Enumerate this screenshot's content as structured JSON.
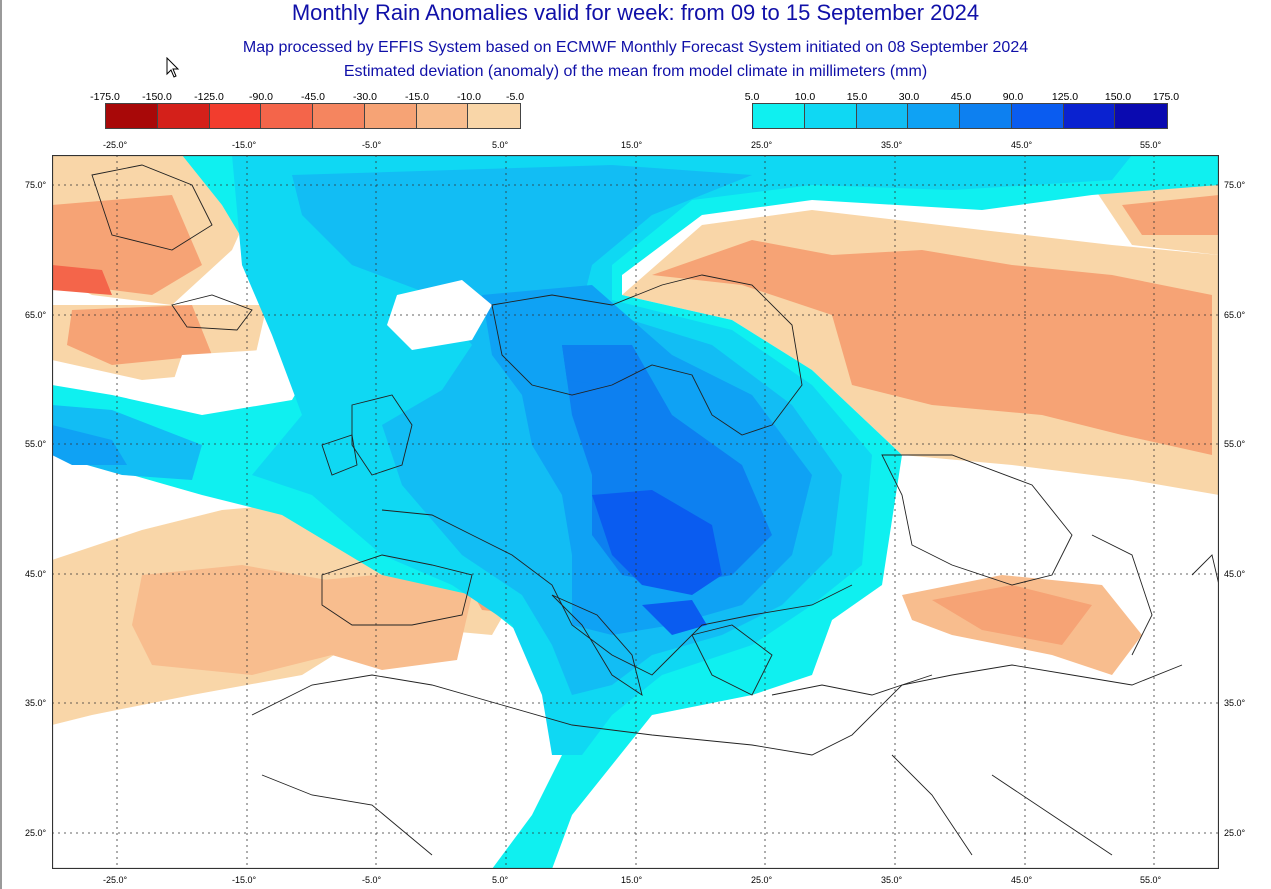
{
  "title": "Monthly Rain Anomalies valid for week: from 09 to 15 September 2024",
  "subtitle1": "Map processed by EFFIS System based on ECMWF Monthly Forecast System initiated on 08 September 2024",
  "subtitle2": "Estimated deviation (anomaly) of the mean from model climate in millimeters (mm)",
  "legend_negative": {
    "labels": [
      "-175.0",
      "-150.0",
      "-125.0",
      "-90.0",
      "-45.0",
      "-30.0",
      "-15.0",
      "-10.0",
      "-5.0"
    ],
    "colors": [
      "#a80808",
      "#d4201a",
      "#f23d2e",
      "#f4654a",
      "#f5855f",
      "#f6a375",
      "#f8bd8e",
      "#f9d6a8"
    ]
  },
  "legend_positive": {
    "labels": [
      "5.0",
      "10.0",
      "15.0",
      "30.0",
      "45.0",
      "90.0",
      "125.0",
      "150.0",
      "175.0"
    ],
    "colors": [
      "#0ff0f0",
      "#0fd8f3",
      "#12bdf4",
      "#0fa2f4",
      "#0d80f0",
      "#0a5cf0",
      "#0a22d0",
      "#0a0ab0"
    ]
  },
  "axes": {
    "lon_top": [
      "-25.0°",
      "-15.0°",
      "-5.0°",
      "5.0°",
      "15.0°",
      "25.0°",
      "35.0°",
      "45.0°",
      "55.0°"
    ],
    "lon_bottom": [
      "-25.0°",
      "-15.0°",
      "-5.0°",
      "5.0°",
      "15.0°",
      "25.0°",
      "35.0°",
      "45.0°",
      "55.0°"
    ],
    "lat_left": [
      "75.0°",
      "65.0°",
      "55.0°",
      "45.0°",
      "35.0°",
      "25.0°"
    ],
    "lat_right": [
      "75.0°",
      "65.0°",
      "55.0°",
      "45.0°",
      "35.0°",
      "25.0°"
    ]
  }
}
